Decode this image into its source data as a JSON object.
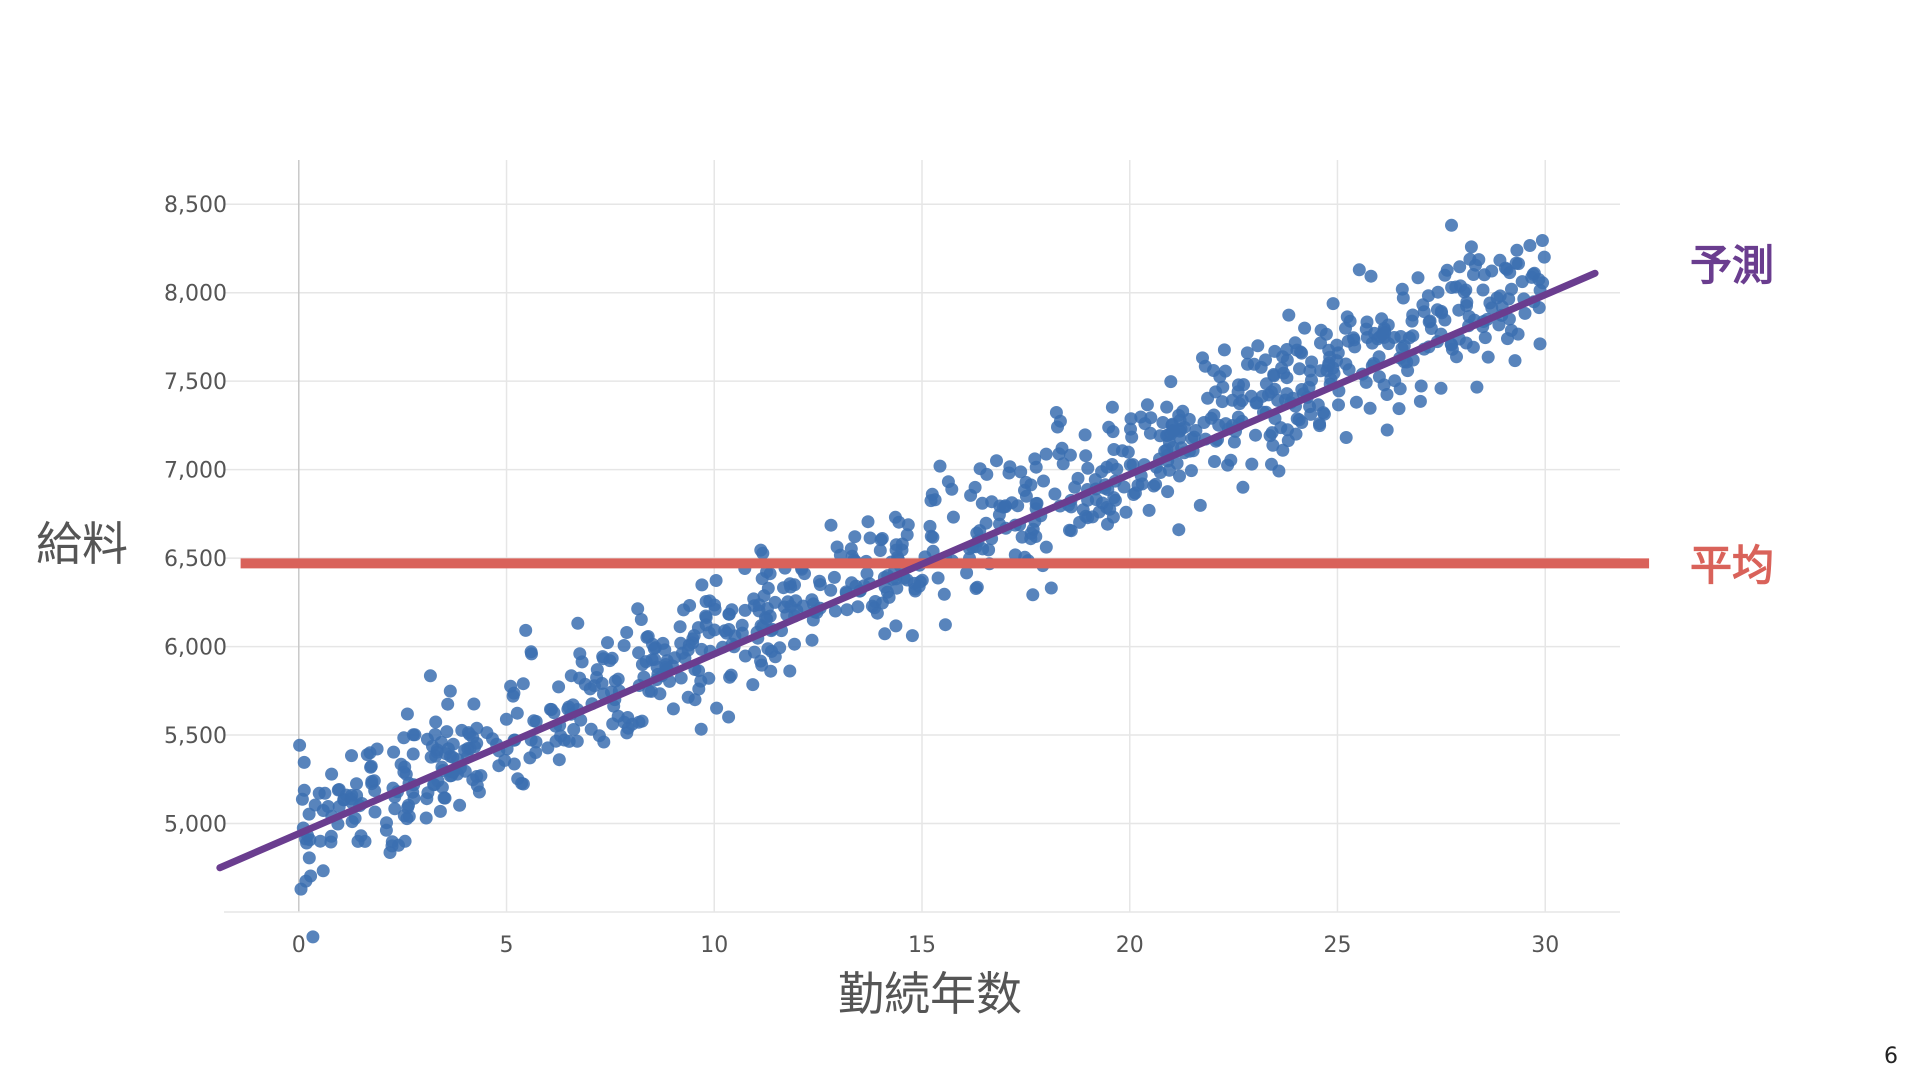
{
  "page_number": "6",
  "colors": {
    "points": "#3b6fb0",
    "prediction_line": "#6a3d8f",
    "mean_line": "#d9625a",
    "grid": "#e6e6e6",
    "axis": "#c8c8c8"
  },
  "chart_data": {
    "type": "scatter",
    "title": "",
    "xlabel": "勤続年数",
    "ylabel": "給料",
    "xlim": [
      -1.8,
      31.8
    ],
    "ylim": [
      4500,
      8750
    ],
    "x_ticks": [
      0,
      5,
      10,
      15,
      20,
      25,
      30
    ],
    "x_tick_labels": [
      "0",
      "5",
      "10",
      "15",
      "20",
      "25",
      "30"
    ],
    "y_ticks": [
      5000,
      5500,
      6000,
      6500,
      7000,
      7500,
      8000,
      8500
    ],
    "y_tick_labels": [
      "5,000",
      "5,500",
      "6,000",
      "6,500",
      "7,000",
      "7,500",
      "8,000",
      "8,500"
    ],
    "grid": true,
    "scatter_description": {
      "n_points": 900,
      "x_range": [
        0,
        30
      ],
      "intercept": 4950,
      "slope": 105,
      "noise_sd": 180
    },
    "prediction_line": {
      "label": "予測",
      "x": [
        -1.9,
        31.2
      ],
      "y": [
        4750,
        8110
      ]
    },
    "mean_line": {
      "label": "平均",
      "y": 6470,
      "x": [
        -1.4,
        32.5
      ]
    }
  }
}
